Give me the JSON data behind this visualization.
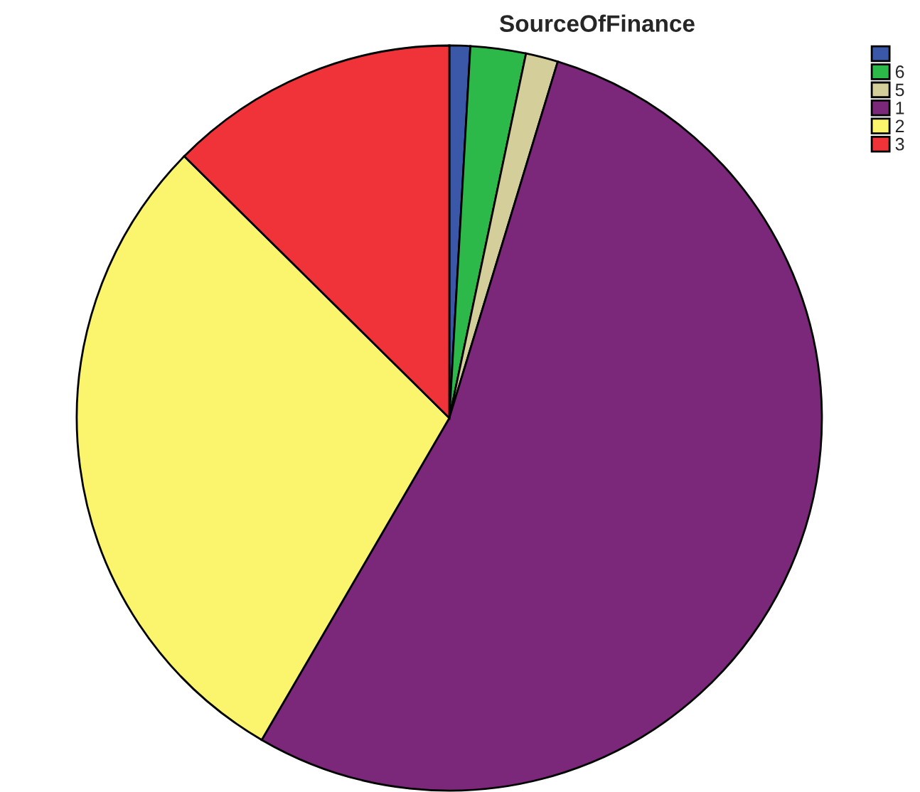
{
  "chart_data": {
    "type": "pie",
    "title": "SourceOfFinance",
    "categories": [
      null,
      "6",
      "5",
      "1",
      "2",
      "3"
    ],
    "values": [
      0.9,
      2.4,
      1.4,
      53.7,
      29.0,
      12.6
    ],
    "colors": [
      "#3b58a8",
      "#2db84a",
      "#d4cf9a",
      "#7b277a",
      "#fbf56e",
      "#ef3339"
    ],
    "legend": "top right"
  }
}
